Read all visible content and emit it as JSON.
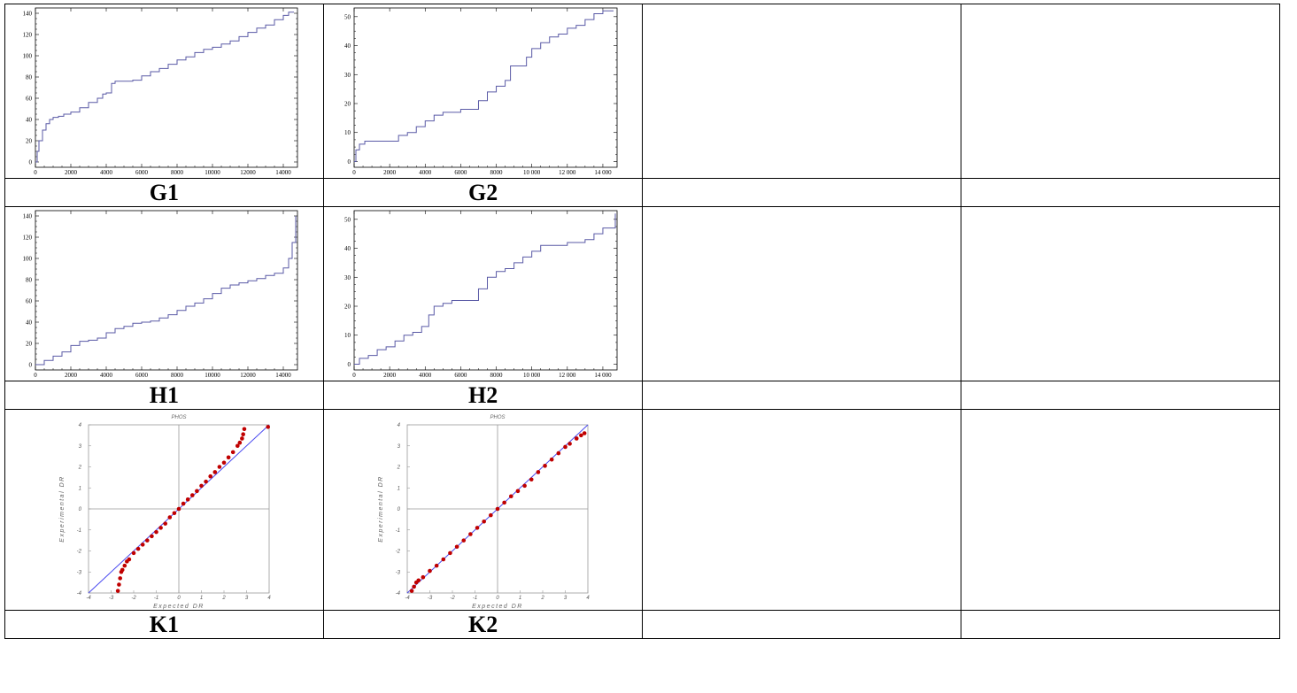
{
  "labels": {
    "g1": "G1",
    "g2": "G2",
    "h1": "H1",
    "h2": "H2",
    "k1": "K1",
    "k2": "K2"
  },
  "colors": {
    "step_line": "#5a5aa6",
    "qq_points": "#c00000",
    "qq_reference": "#4a4af0",
    "qq_axes": "#999999"
  },
  "chart_data": [
    {
      "id": "G1",
      "type": "line",
      "xlim": [
        0,
        14800
      ],
      "ylim": [
        -5,
        145
      ],
      "xticks": [
        0,
        2000,
        4000,
        6000,
        8000,
        10000,
        12000,
        14000
      ],
      "xtick_labels": [
        "0",
        "2000",
        "4000",
        "6000",
        "8000",
        "10000",
        "12000",
        "14000"
      ],
      "yticks": [
        0,
        20,
        40,
        60,
        80,
        100,
        120,
        140
      ],
      "ytick_labels": [
        "0",
        "20",
        "40",
        "60",
        "80",
        "100",
        "120",
        "140"
      ],
      "x": [
        0,
        100,
        200,
        400,
        600,
        800,
        1000,
        1300,
        1600,
        2000,
        2500,
        3000,
        3500,
        3800,
        4000,
        4300,
        4500,
        5000,
        5500,
        6000,
        6500,
        7000,
        7500,
        8000,
        8500,
        9000,
        9500,
        10000,
        10500,
        11000,
        11500,
        12000,
        12500,
        13000,
        13500,
        14000,
        14300,
        14600
      ],
      "y": [
        0,
        10,
        20,
        30,
        36,
        40,
        42,
        43,
        45,
        47,
        51,
        56,
        60,
        64,
        65,
        74,
        76,
        76,
        77,
        81,
        85,
        88,
        92,
        96,
        99,
        103,
        106,
        108,
        111,
        114,
        118,
        122,
        126,
        129,
        134,
        138,
        141,
        141
      ]
    },
    {
      "id": "G2",
      "type": "line",
      "xlim": [
        0,
        14800
      ],
      "ylim": [
        -2,
        53
      ],
      "xticks": [
        0,
        2000,
        4000,
        6000,
        8000,
        10000,
        12000,
        14000
      ],
      "xtick_labels": [
        "0",
        "2000",
        "4000",
        "6000",
        "8000",
        "10 000",
        "12 000",
        "14 000"
      ],
      "yticks": [
        0,
        10,
        20,
        30,
        40,
        50
      ],
      "ytick_labels": [
        "0",
        "10",
        "20",
        "30",
        "40",
        "50"
      ],
      "x": [
        0,
        100,
        300,
        600,
        2000,
        2500,
        3000,
        3500,
        4000,
        4500,
        5000,
        5500,
        6000,
        6500,
        7000,
        7500,
        8000,
        8500,
        8800,
        9300,
        9700,
        10000,
        10500,
        11000,
        11500,
        12000,
        12500,
        13000,
        13500,
        14000,
        14600
      ],
      "y": [
        0,
        4,
        6,
        7,
        7,
        9,
        10,
        12,
        14,
        16,
        17,
        17,
        18,
        18,
        21,
        24,
        26,
        28,
        33,
        33,
        36,
        39,
        41,
        43,
        44,
        46,
        47,
        49,
        51,
        52,
        52
      ]
    },
    {
      "id": "H1",
      "type": "line",
      "xlim": [
        0,
        14800
      ],
      "ylim": [
        -5,
        145
      ],
      "xticks": [
        0,
        2000,
        4000,
        6000,
        8000,
        10000,
        12000,
        14000
      ],
      "xtick_labels": [
        "0",
        "2000",
        "4000",
        "6000",
        "8000",
        "10000",
        "12000",
        "14000"
      ],
      "yticks": [
        0,
        20,
        40,
        60,
        80,
        100,
        120,
        140
      ],
      "ytick_labels": [
        "0",
        "20",
        "40",
        "60",
        "80",
        "100",
        "120",
        "140"
      ],
      "x": [
        0,
        500,
        1000,
        1500,
        2000,
        2500,
        3000,
        3500,
        4000,
        4500,
        5000,
        5500,
        6000,
        6500,
        7000,
        7500,
        8000,
        8500,
        9000,
        9500,
        10000,
        10500,
        11000,
        11500,
        12000,
        12500,
        13000,
        13500,
        14000,
        14300,
        14500,
        14700
      ],
      "y": [
        0,
        4,
        8,
        12,
        18,
        22,
        23,
        25,
        30,
        34,
        36,
        39,
        40,
        41,
        44,
        47,
        51,
        55,
        58,
        62,
        67,
        72,
        75,
        77,
        79,
        81,
        84,
        86,
        91,
        100,
        115,
        140
      ]
    },
    {
      "id": "H2",
      "type": "line",
      "xlim": [
        0,
        14800
      ],
      "ylim": [
        -2,
        53
      ],
      "xticks": [
        0,
        2000,
        4000,
        6000,
        8000,
        10000,
        12000,
        14000
      ],
      "xtick_labels": [
        "0",
        "2000",
        "4000",
        "6000",
        "8000",
        "10 000",
        "12 000",
        "14 000"
      ],
      "yticks": [
        0,
        10,
        20,
        30,
        40,
        50
      ],
      "ytick_labels": [
        "0",
        "10",
        "20",
        "30",
        "40",
        "50"
      ],
      "x": [
        0,
        300,
        800,
        1300,
        1800,
        2300,
        2800,
        3300,
        3800,
        4200,
        4500,
        5000,
        5500,
        6000,
        6500,
        7000,
        7500,
        8000,
        8500,
        9000,
        9500,
        10000,
        10500,
        11000,
        12000,
        13000,
        13500,
        14000,
        14500,
        14700
      ],
      "y": [
        0,
        2,
        3,
        5,
        6,
        8,
        10,
        11,
        13,
        17,
        20,
        21,
        22,
        22,
        22,
        26,
        30,
        32,
        33,
        35,
        37,
        39,
        41,
        41,
        42,
        43,
        45,
        47,
        47,
        52
      ]
    },
    {
      "id": "K1",
      "type": "scatter",
      "title": "PHOS",
      "xlabel": "Expected DR",
      "ylabel": "Experimental DR",
      "xlim": [
        -4,
        4
      ],
      "ylim": [
        -4,
        4
      ],
      "ticks": [
        -4,
        -3,
        -2,
        -1,
        0,
        1,
        2,
        3,
        4
      ],
      "tick_labels": [
        "-4",
        "-3",
        "-2",
        "-1",
        "0",
        "1",
        "2",
        "3",
        "4"
      ],
      "reference_line": [
        [
          -4,
          -4
        ],
        [
          4,
          4
        ]
      ],
      "x": [
        -2.7,
        -2.65,
        -2.6,
        -2.55,
        -2.5,
        -2.4,
        -2.3,
        -2.2,
        -2.0,
        -1.8,
        -1.6,
        -1.4,
        -1.2,
        -1.0,
        -0.8,
        -0.6,
        -0.4,
        -0.2,
        0.0,
        0.2,
        0.4,
        0.6,
        0.8,
        1.0,
        1.2,
        1.4,
        1.6,
        1.8,
        2.0,
        2.2,
        2.4,
        2.6,
        2.7,
        2.8,
        2.85,
        2.9,
        3.95
      ],
      "y": [
        -3.9,
        -3.6,
        -3.3,
        -3.0,
        -2.9,
        -2.7,
        -2.5,
        -2.4,
        -2.1,
        -1.9,
        -1.7,
        -1.5,
        -1.3,
        -1.1,
        -0.9,
        -0.7,
        -0.4,
        -0.2,
        0.0,
        0.25,
        0.45,
        0.65,
        0.85,
        1.1,
        1.3,
        1.55,
        1.75,
        2.0,
        2.2,
        2.45,
        2.7,
        3.0,
        3.15,
        3.35,
        3.55,
        3.8,
        3.9
      ]
    },
    {
      "id": "K2",
      "type": "scatter",
      "title": "PHOS",
      "xlabel": "Expected DR",
      "ylabel": "Experimental DR",
      "xlim": [
        -4,
        4
      ],
      "ylim": [
        -4,
        4
      ],
      "ticks": [
        -4,
        -3,
        -2,
        -1,
        0,
        1,
        2,
        3,
        4
      ],
      "tick_labels": [
        "-4",
        "-3",
        "-2",
        "-1",
        "0",
        "1",
        "2",
        "3",
        "4"
      ],
      "reference_line": [
        [
          -4,
          -4
        ],
        [
          4,
          4
        ]
      ],
      "x": [
        -3.8,
        -3.7,
        -3.6,
        -3.5,
        -3.3,
        -3.0,
        -2.7,
        -2.4,
        -2.1,
        -1.8,
        -1.5,
        -1.2,
        -0.9,
        -0.6,
        -0.3,
        0.0,
        0.3,
        0.6,
        0.9,
        1.2,
        1.5,
        1.8,
        2.1,
        2.4,
        2.7,
        3.0,
        3.2,
        3.5,
        3.7,
        3.85
      ],
      "y": [
        -3.9,
        -3.7,
        -3.5,
        -3.4,
        -3.25,
        -2.95,
        -2.7,
        -2.4,
        -2.1,
        -1.8,
        -1.5,
        -1.2,
        -0.9,
        -0.6,
        -0.3,
        0.0,
        0.3,
        0.6,
        0.85,
        1.1,
        1.4,
        1.75,
        2.05,
        2.35,
        2.65,
        2.95,
        3.1,
        3.35,
        3.5,
        3.6
      ]
    }
  ]
}
